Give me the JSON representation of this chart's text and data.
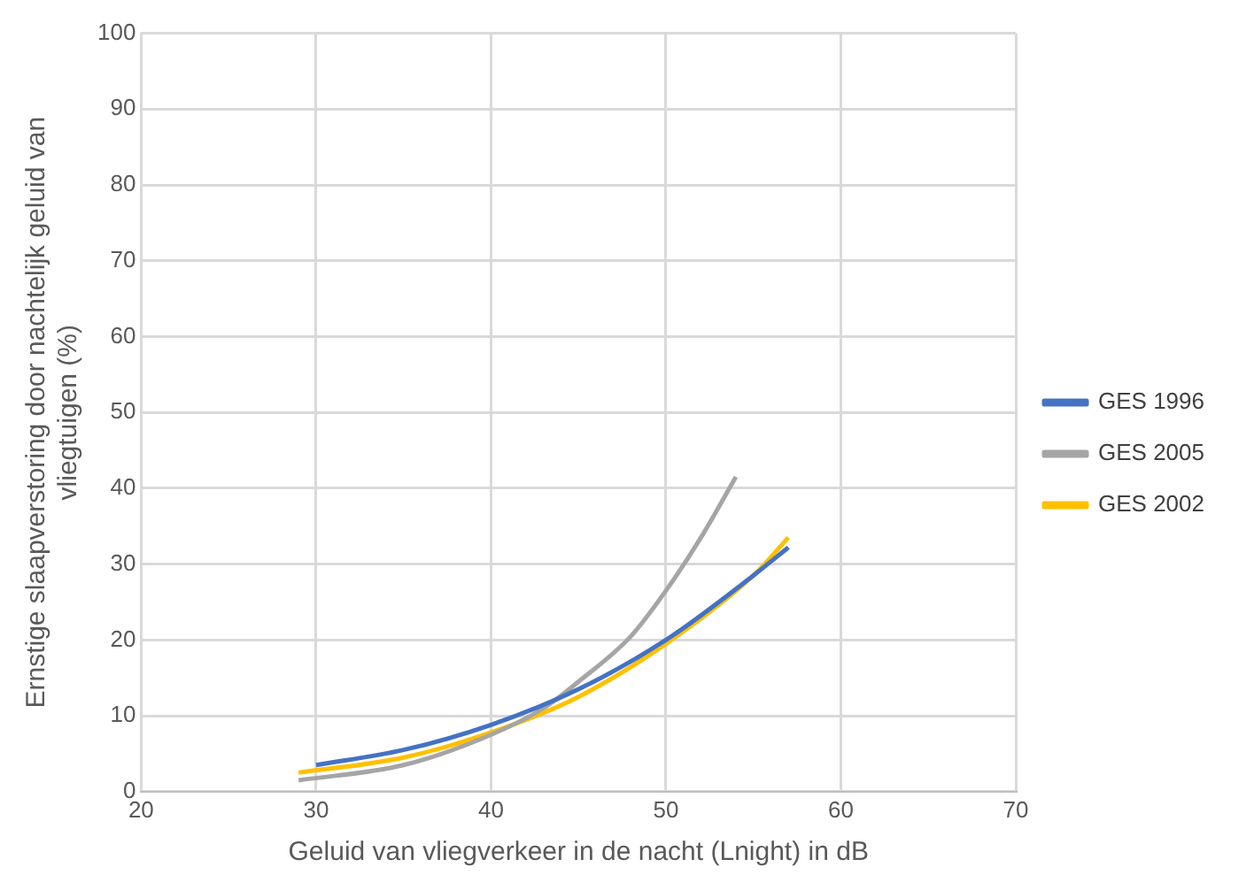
{
  "chart_data": {
    "type": "line",
    "xlabel": "Geluid van vliegverkeer in de nacht (Lnight) in dB",
    "ylabel": "Ernstige slaapverstoring door nachtelijk geluid van vliegtuigen (%)",
    "xlim": [
      20,
      70
    ],
    "xticks": [
      20,
      30,
      40,
      50,
      60,
      70
    ],
    "ylim": [
      0,
      100
    ],
    "yticks": [
      0,
      10,
      20,
      30,
      40,
      50,
      60,
      70,
      80,
      90,
      100
    ],
    "grid": true,
    "legend": "right",
    "marker": "none",
    "line_style": "solid",
    "series": [
      {
        "name": "GES 1996",
        "color": "#4472c4",
        "x": [
          30,
          35,
          40,
          45,
          50,
          55,
          57
        ],
        "values": [
          3.5,
          5.5,
          8.8,
          13.5,
          20,
          28.5,
          32.2
        ]
      },
      {
        "name": "GES 2005",
        "color": "#a5a5a5",
        "x": [
          29,
          35,
          40,
          43,
          45,
          48,
          50,
          52,
          54
        ],
        "values": [
          1.5,
          3.5,
          7.5,
          11,
          14.5,
          20.5,
          26.5,
          33.5,
          41.5
        ]
      },
      {
        "name": "GES 2002",
        "color": "#ffc000",
        "x": [
          29,
          35,
          40,
          45,
          50,
          55,
          57
        ],
        "values": [
          2.5,
          4.5,
          7.8,
          12.5,
          19.5,
          28.5,
          33.5
        ]
      }
    ]
  }
}
